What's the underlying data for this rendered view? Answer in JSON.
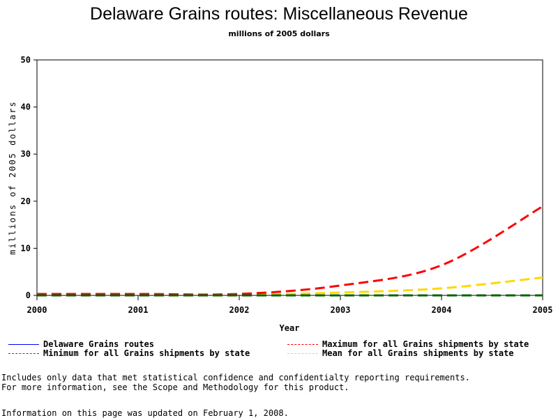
{
  "chart_data": {
    "type": "line",
    "title": "Delaware Grains routes: Miscellaneous Revenue",
    "subtitle": "millions of 2005 dollars",
    "xlabel": "Year",
    "ylabel": "millions of 2005 dollars",
    "x": [
      2000,
      2001,
      2002,
      2003,
      2004,
      2005
    ],
    "xlim": [
      2000,
      2005
    ],
    "ylim": [
      0,
      50
    ],
    "x_ticks": [
      "2000",
      "2001",
      "2002",
      "2003",
      "2004",
      "2005"
    ],
    "y_ticks": [
      "0",
      "10",
      "20",
      "30",
      "40",
      "50"
    ],
    "grid": false,
    "legend_position": "bottom",
    "series": [
      {
        "name": "Delaware Grains routes",
        "color": "#0000ff",
        "style": "solid",
        "values": [
          null,
          null,
          null,
          null,
          null,
          null
        ]
      },
      {
        "name": "Maximum for all Grains shipments by state",
        "color": "#ff0000",
        "style": "dashed",
        "values": [
          0.3,
          0.3,
          0.3,
          2.1,
          6.4,
          18.9
        ]
      },
      {
        "name": "Minimum for all Grains shipments by state",
        "color": "#006400",
        "style": "dashed",
        "values": [
          0,
          0,
          0,
          0,
          0,
          0
        ]
      },
      {
        "name": "Mean for all Grains shipments by state",
        "color": "#ffd700",
        "style": "dashed",
        "values": [
          0.1,
          0.1,
          0.1,
          0.6,
          1.5,
          3.8
        ]
      }
    ]
  },
  "legend": {
    "items": [
      "Delaware Grains routes",
      "Maximum for all Grains shipments by state",
      "Minimum for all Grains shipments by state",
      "Mean for all Grains shipments by state"
    ]
  },
  "notes": {
    "line1": "Includes only data that met statistical confidence and confidentialty reporting requirements.",
    "line2": "For more information, see the Scope and Methodology for this product.",
    "updated": "Information on this page was updated on February 1, 2008."
  }
}
